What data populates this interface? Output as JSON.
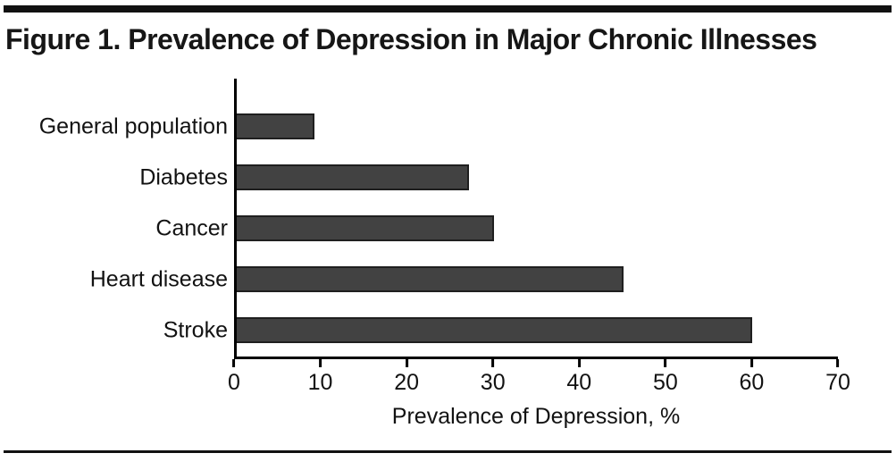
{
  "figure": {
    "title": "Figure 1. Prevalence of Depression in Major Chronic Illnesses"
  },
  "chart_data": {
    "type": "bar",
    "orientation": "horizontal",
    "title": "Figure 1. Prevalence of Depression in Major Chronic Illnesses",
    "categories": [
      "General population",
      "Diabetes",
      "Cancer",
      "Heart disease",
      "Stroke"
    ],
    "values": [
      9,
      27,
      30,
      45,
      60
    ],
    "xlabel": "Prevalence of Depression, %",
    "ylabel": "",
    "xlim": [
      0,
      70
    ],
    "xticks": [
      0,
      10,
      20,
      30,
      40,
      50,
      60,
      70
    ],
    "grid": false,
    "legend": "none",
    "bar_color": "#424242",
    "bar_border_color": "#1f1f1f",
    "axis_color": "#000000"
  }
}
